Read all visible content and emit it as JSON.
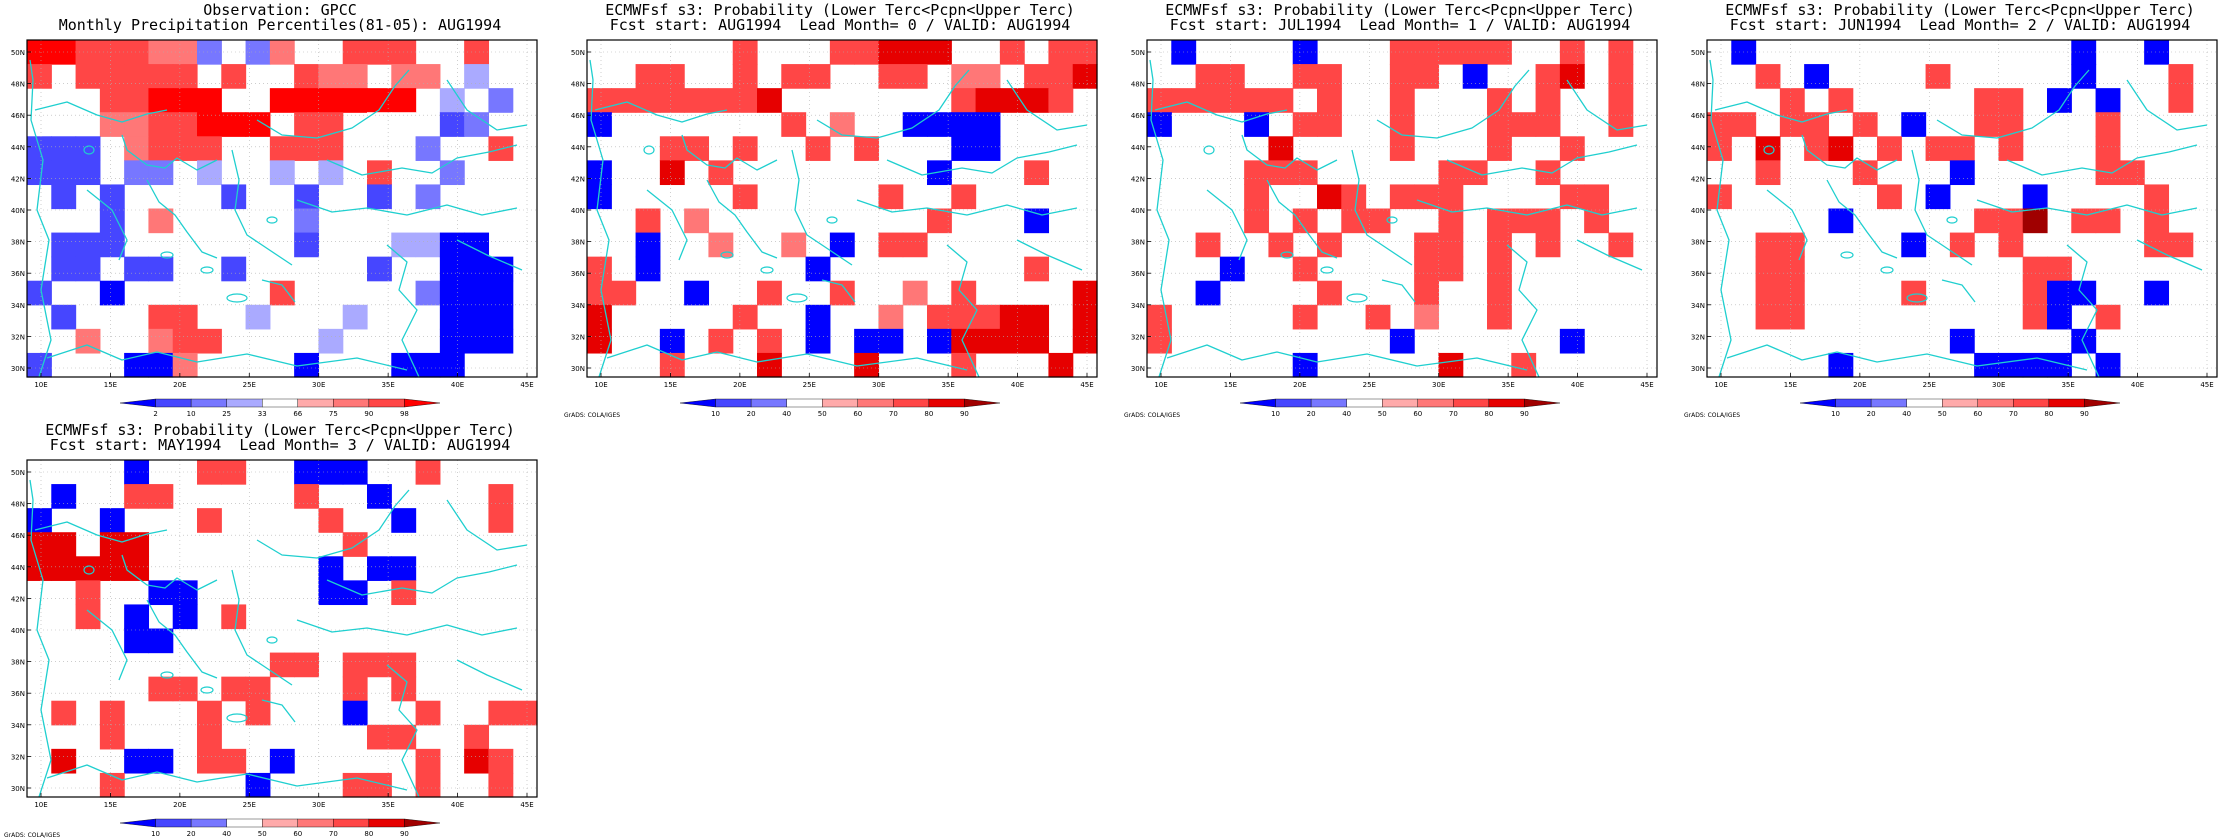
{
  "credit": "GrADS: COLA/IGES",
  "lon_ticks": [
    "10E",
    "15E",
    "20E",
    "25E",
    "30E",
    "35E",
    "40E",
    "45E"
  ],
  "lat_ticks": [
    "50N",
    "48N",
    "46N",
    "44N",
    "42N",
    "40N",
    "38N",
    "36N",
    "34N",
    "32N",
    "30N"
  ],
  "obs_scale": {
    "labels": [
      "2",
      "10",
      "25",
      "33",
      "66",
      "75",
      "90",
      "98"
    ],
    "colors": [
      "#0000ff",
      "#4646ff",
      "#7777ff",
      "#aaaaff",
      "#ffffff",
      "#ffaaaa",
      "#ff7777",
      "#ff4646",
      "#ff0000"
    ]
  },
  "prob_scale": {
    "labels": [
      "10",
      "20",
      "40",
      "50",
      "60",
      "70",
      "80",
      "90"
    ],
    "colors": [
      "#0000ff",
      "#4646ff",
      "#7777ff",
      "#ffffff",
      "#ffaaaa",
      "#ff7777",
      "#ff4646",
      "#e60000",
      "#a00000"
    ]
  },
  "panels": [
    {
      "title1": "Observation: GPCC",
      "title2": "Monthly Precipitation Percentiles(81-05): AUG1994",
      "scale": "obs",
      "grid": [
        "88777662.26..777..7.",
        "7.77777.7..766.66.3..",
        "...77888..888888.3.2",
        "...6677888.77.44.12.4",
        "111.6777..777...2..7.",
        "111.22.3..3.3.7..2..",
        ".1.1....1..1..1.2..",
        "...1.6.....2.......",
        ".111.......1...3300.",
        ".11.11..1.....1..000",
        "1..0......7.....2000",
        ".1...77..3...3...000",
        "..6..677....3....000",
        "1...006....0...000"
      ]
    },
    {
      "title1": "ECMWFsf s3: Probability (Lower Terc<Pcpn<Upper Terc)",
      "title2": "Fcst start: AUG1994  Lead Month= 0 / VALID: AUG1994",
      "scale": "prob",
      "grid": [
        "......6...66777..6.66",
        "..66..6.66..66.55.667",
        "66666667.......67776",
        "0.......6.5..0000..",
        "...66.6..6.6...00...",
        "0..7.6........0...6..",
        "0.....6.....6..6....",
        "..6.5.........6...0..",
        "..0..5..5.0.66.....",
        "6.0......0........6.",
        "66..0..6..6..5.6....7",
        "7.....6..0..5.66677.7",
        "7..0.6.6.0.00.07777.7",
        "...6...7...7...6...7"
      ]
    },
    {
      "title1": "ECMWFsf s3: Probability (Lower Terc<Pcpn<Upper Terc)",
      "title2": "Fcst start: JUL1994  Lead Month= 1 / VALID: AUG1994",
      "scale": "prob",
      "grid": [
        ".0....0...66666..6.6.",
        "..66..66..66.0..67.6.",
        "666666.6..6...6.6..6.",
        "0...0.66..6...666..6",
        ".....7....6...6..6...",
        "....666.....66..6....",
        "....6..76.666....66..0",
        "....6.6.66..6.666.6..",
        "..6..6.6...66.6.6..6.",
        "...0..6....66.6......",
        "..0....6...6..6......",
        "6.....6..6.5..6....",
        "6.........0......0.",
        "......0.....7..6...."
      ]
    },
    {
      "title1": "ECMWFsf s3: Probability (Lower Terc<Pcpn<Upper Terc)",
      "title2": "Fcst start: JUN1994  Lead Month= 2 / VALID: AUG1994",
      "scale": "prob",
      "grid": [
        ".0.............0..0.",
        "..6.0....6.....0...6",
        "...6.6.....66.0.0..6",
        "66.66.6.0..66...6..",
        "6.7.67.6.66.6...6...",
        "..6...6...0.....66.",
        "6......6.0...0....6.",
        ".....0.....668.66.6",
        "..66....0.6.6.....66",
        "..66.........66...",
        "..66....6....600..0.",
        "..66.........60.6..",
        "..........0....0...",
        ".....0.....0000.0..."
      ]
    },
    {
      "title1": "ECMWFsf s3: Probability (Lower Terc<Pcpn<Upper Terc)",
      "title2": "Fcst start: MAY1994  Lead Month= 3 / VALID: AUG1994",
      "scale": "prob",
      "grid": [
        "....0..66..000..6....",
        ".0..66.....6..0....6.",
        "0..0...6....6..0...6",
        "77.77........6......",
        "77777.......0.00......",
        "..6..00.....00.6.....",
        "..6.0.0.6.............",
        "....00..............",
        "..........66.666.....",
        ".....66.66...6.6.....",
        ".6.6...6.6...0..6..66",
        "...6...6......66..6",
        ".7..00.66.0.....6.76",
        "...6.....0...66.6..6"
      ]
    }
  ]
}
